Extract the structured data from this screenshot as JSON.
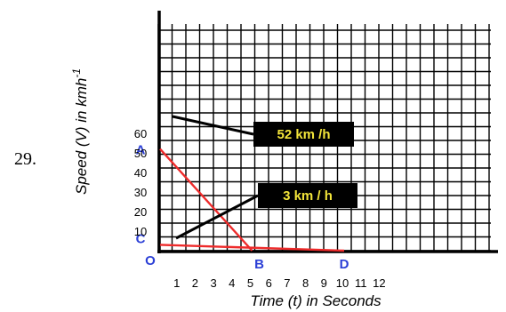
{
  "question_number": "29.",
  "chart_data": {
    "type": "line",
    "xlabel": "Time (t) in Seconds",
    "ylabel": "Speed (V) in kmh",
    "ylabel_superscript": "-1",
    "x_ticks": [
      "1",
      "2",
      "3",
      "4",
      "5",
      "6",
      "7",
      "8",
      "9",
      "10",
      "11",
      "12"
    ],
    "y_ticks": [
      "10",
      "20",
      "30",
      "40",
      "50",
      "60"
    ],
    "grid": true,
    "points": [
      {
        "label": "O",
        "x": 0,
        "y": 0
      },
      {
        "label": "A",
        "x": 0,
        "y": 52
      },
      {
        "label": "B",
        "x": 5,
        "y": 0
      },
      {
        "label": "C",
        "x": 0,
        "y": 3
      },
      {
        "label": "D",
        "x": 10,
        "y": 0
      }
    ],
    "series": [
      {
        "from": "A",
        "to": "B"
      },
      {
        "from": "C",
        "to": "D"
      }
    ],
    "annotations": [
      {
        "text": "52 km /h",
        "points_to": "A"
      },
      {
        "text": "3 km / h",
        "points_to": "C"
      }
    ],
    "colors": {
      "line": "#ee2b2b",
      "point_label": "#2b3fd6",
      "grid": "#000000",
      "annotation_bg": "#000000",
      "annotation_text": "#f3e53a"
    }
  }
}
